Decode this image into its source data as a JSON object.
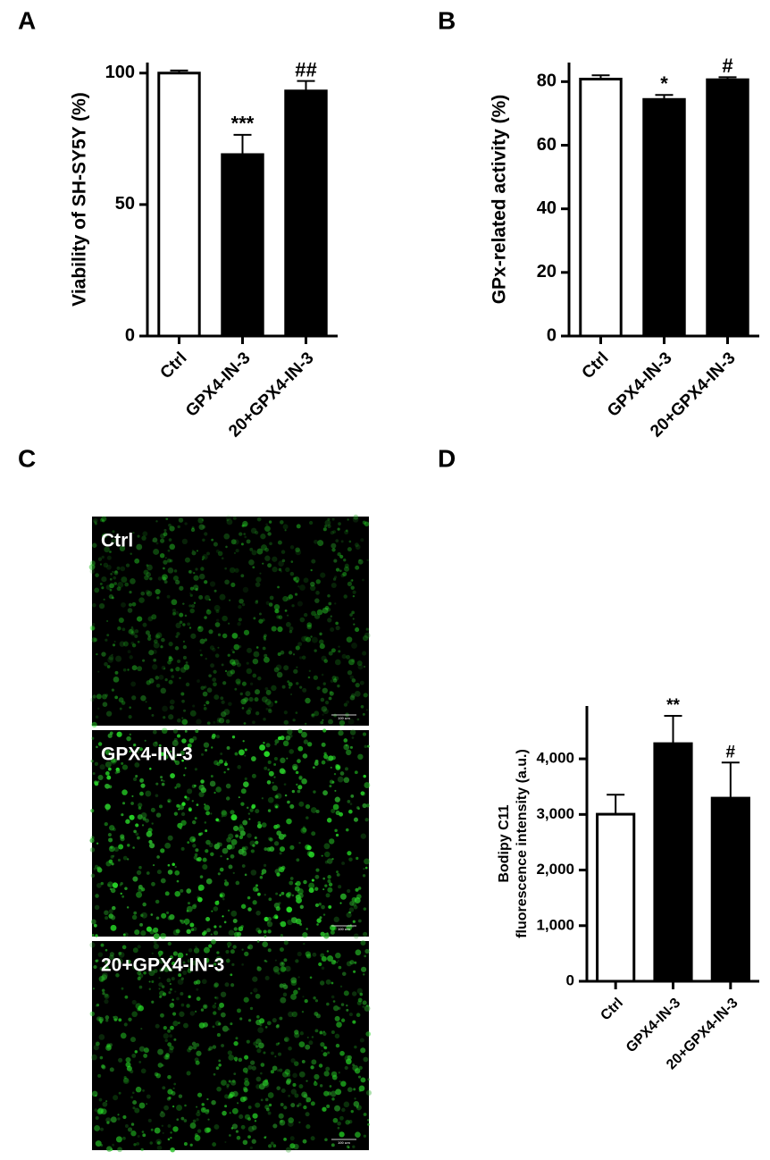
{
  "chart_data": [
    {
      "type": "bar",
      "label": "A",
      "ylabel": "Viability of SH-SY5Y (%)",
      "categories": [
        "Ctrl",
        "GPX4-IN-3",
        "20+GPX4-IN-3"
      ],
      "values": [
        100,
        69,
        93.2
      ],
      "errors": [
        1,
        7.5,
        3.8
      ],
      "annotations": [
        null,
        "***",
        "##"
      ],
      "colors": [
        "#ffffff",
        "#000000",
        "#000000"
      ],
      "ylim": [
        0,
        104
      ],
      "yticks": [
        0,
        50,
        100
      ]
    },
    {
      "type": "bar",
      "label": "B",
      "ylabel": "GPx-related activity (%)",
      "categories": [
        "Ctrl",
        "GPX4-IN-3",
        "20+GPX4-IN-3"
      ],
      "values": [
        80.8,
        74.4,
        80.6
      ],
      "errors": [
        1.2,
        1.4,
        0.8
      ],
      "annotations": [
        null,
        "*",
        "#"
      ],
      "colors": [
        "#ffffff",
        "#000000",
        "#000000"
      ],
      "ylim": [
        0,
        86
      ],
      "yticks": [
        0,
        20,
        40,
        60,
        80
      ]
    },
    {
      "type": "image",
      "label": "C",
      "panels": [
        "Ctrl",
        "GPX4-IN-3",
        "20+GPX4-IN-3"
      ],
      "scale_bar": "100 um"
    },
    {
      "type": "bar",
      "label": "D",
      "ylabel": [
        "Bodipy C11",
        "fluorescence intensity (a.u.)"
      ],
      "categories": [
        "Ctrl",
        "GPX4-IN-3",
        "20+GPX4-IN-3"
      ],
      "values": [
        3004,
        4273,
        3293
      ],
      "errors": [
        350,
        500,
        640
      ],
      "annotations": [
        null,
        "**",
        "#"
      ],
      "colors": [
        "#ffffff",
        "#000000",
        "#000000"
      ],
      "ylim": [
        0,
        4950
      ],
      "yticks": [
        0,
        {
          "value": 1000,
          "label": "1,000"
        },
        {
          "value": 2000,
          "label": "2,000"
        },
        {
          "value": 3000,
          "label": "3,000"
        },
        {
          "value": 4000,
          "label": "4,000"
        }
      ]
    }
  ]
}
